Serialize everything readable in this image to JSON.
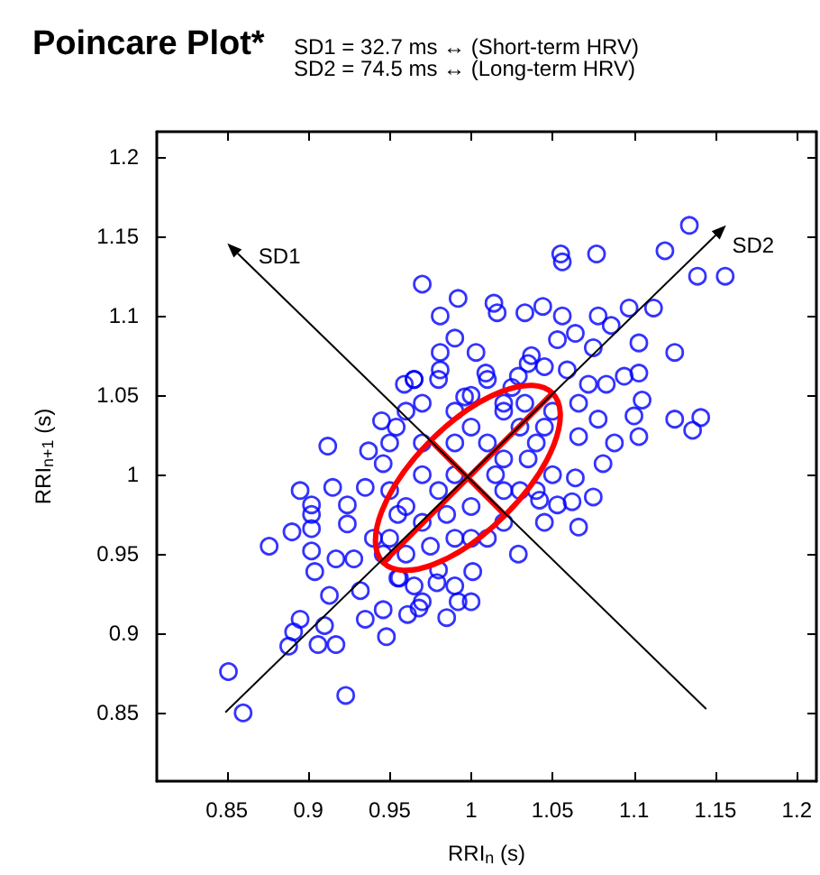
{
  "chart_data": {
    "type": "scatter",
    "title": "Poincare Plot*",
    "xlabel": "RRI$_{n}$ (s)",
    "ylabel": "RRI$_{n+1}$ (s)",
    "annotations": [
      "SD1 = 32.7 ms ↔ (Short-term HRV)",
      "SD2 = 74.5 ms ↔ (Long-term HRV)",
      "SD1",
      "SD2"
    ],
    "xlim": [
      0.807,
      1.212
    ],
    "ylim": [
      0.807,
      1.216
    ],
    "xticks": [
      0.85,
      0.9,
      0.95,
      1,
      1.05,
      1.1,
      1.15,
      1.2
    ],
    "yticks": [
      0.85,
      0.9,
      0.95,
      1,
      1.05,
      1.1,
      1.15,
      1.2
    ],
    "grid": false,
    "color": "#0000ff",
    "marker": "circle",
    "x": [
      0.97,
      0.959,
      0.965,
      0.97,
      0.945,
      0.954,
      0.912,
      1.134,
      1.119,
      1.055,
      1.056,
      1.077,
      1.139,
      1.156,
      0.992,
      0.981,
      1.014,
      1.016,
      1.033,
      1.044,
      1.056,
      1.078,
      1.086,
      1.097,
      1.112,
      0.99,
      0.981,
      1.003,
      1.037,
      1.053,
      1.064,
      1.075,
      1.103,
      1.125,
      0.981,
      1.009,
      1.029,
      1.045,
      1.059,
      1.072,
      1.083,
      1.094,
      1.103,
      0.996,
      1.02,
      1.033,
      1.066,
      1.078,
      1.105,
      1.1,
      1.125,
      1.141,
      1.136,
      1.103,
      1.088,
      1.066,
      1.081,
      1.064,
      1.075,
      1.053,
      1.062,
      1.042,
      1.066,
      1.045,
      1.029,
      0.992,
      1.001,
      0.979,
      0.968,
      0.895,
      0.915,
      0.902,
      0.902,
      0.89,
      0.876,
      0.902,
      0.902,
      0.924,
      0.924,
      0.935,
      0.937,
      0.946,
      0.904,
      0.917,
      0.928,
      0.913,
      0.932,
      0.895,
      0.891,
      0.91,
      0.917,
      0.906,
      0.888,
      0.948,
      0.935,
      0.946,
      0.961,
      0.851,
      0.86,
      0.923,
      0.956,
      0.946,
      0.95,
      0.96,
      0.97,
      0.98,
      0.99,
      1.0,
      1.01,
      1.02,
      1.03,
      1.04,
      0.99,
      0.97,
      1.0,
      1.02,
      0.96,
      0.98,
      1.01,
      1.03,
      1.05,
      0.95,
      0.97,
      1.0,
      1.02,
      0.99,
      0.975,
      0.955,
      0.94,
      0.965,
      0.985,
      1.015,
      1.035,
      1.045,
      0.99,
      1.01,
      0.98,
      0.96,
      0.95,
      1.02,
      1.04,
      1.0,
      0.99,
      0.97,
      0.985,
      1.0,
      0.955,
      1.05,
      1.025,
      1.035,
      0.965
    ],
    "values": [
      1.12,
      1.057,
      1.06,
      1.045,
      1.034,
      1.03,
      1.018,
      1.157,
      1.141,
      1.139,
      1.134,
      1.139,
      1.125,
      1.125,
      1.111,
      1.1,
      1.108,
      1.102,
      1.102,
      1.106,
      1.1,
      1.1,
      1.094,
      1.105,
      1.105,
      1.086,
      1.077,
      1.077,
      1.075,
      1.085,
      1.089,
      1.08,
      1.083,
      1.077,
      1.066,
      1.064,
      1.062,
      1.068,
      1.066,
      1.057,
      1.057,
      1.062,
      1.064,
      1.049,
      1.045,
      1.045,
      1.045,
      1.035,
      1.047,
      1.037,
      1.035,
      1.036,
      1.028,
      1.024,
      1.02,
      1.024,
      1.007,
      0.998,
      0.986,
      0.981,
      0.983,
      0.984,
      0.967,
      0.97,
      0.95,
      0.92,
      0.939,
      0.932,
      0.916,
      0.99,
      0.992,
      0.981,
      0.975,
      0.964,
      0.955,
      0.966,
      0.952,
      0.981,
      0.969,
      0.992,
      1.015,
      1.007,
      0.939,
      0.947,
      0.947,
      0.924,
      0.927,
      0.909,
      0.901,
      0.905,
      0.893,
      0.893,
      0.892,
      0.898,
      0.909,
      0.915,
      0.912,
      0.876,
      0.85,
      0.861,
      0.935,
      0.95,
      0.96,
      0.95,
      0.97,
      0.99,
      1.0,
      0.98,
      1.02,
      1.01,
      1.03,
      1.02,
      0.96,
      1.0,
      1.03,
      0.99,
      0.98,
      0.94,
      0.96,
      0.99,
      1.04,
      0.99,
      1.02,
      1.05,
      1.04,
      1.02,
      0.955,
      0.935,
      0.96,
      0.93,
      0.975,
      1.0,
      1.01,
      1.03,
      1.04,
      1.06,
      1.06,
      1.04,
      1.02,
      0.97,
      0.99,
      0.92,
      0.93,
      0.92,
      0.91,
      0.96,
      0.975,
      1.0,
      1.055,
      1.07,
      1.06
    ]
  }
}
